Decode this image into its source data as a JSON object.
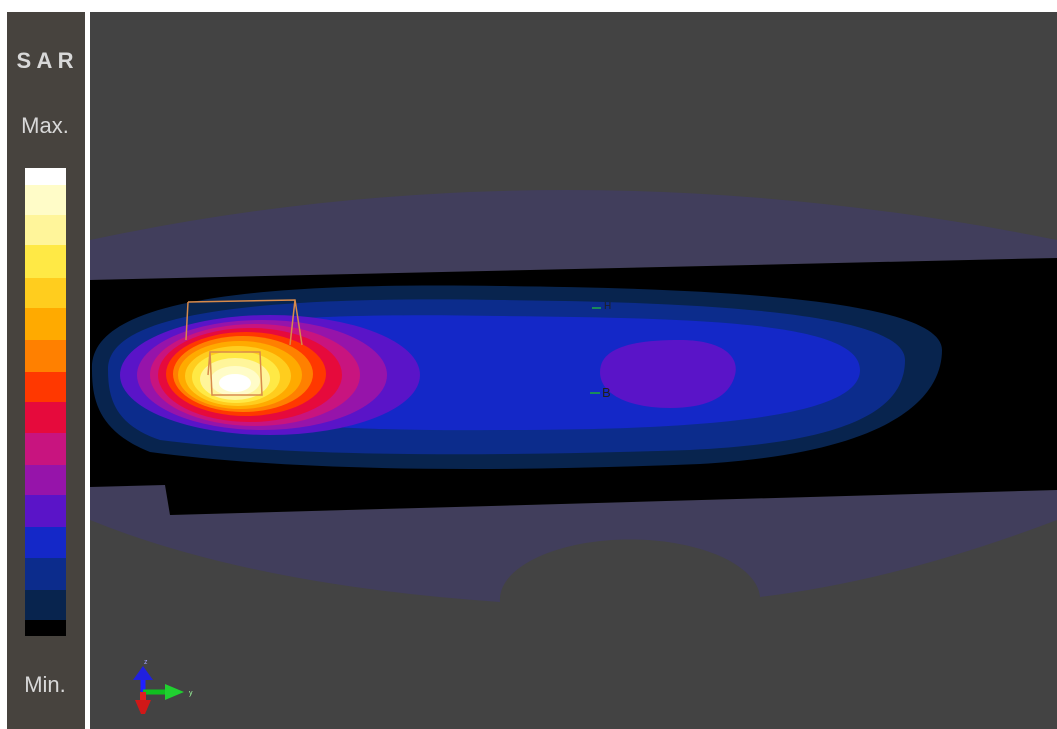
{
  "legend": {
    "title": "S A R",
    "max_label": "Max.",
    "min_label": "Min."
  },
  "markers": {
    "h": "H",
    "b": "B"
  },
  "axes": {
    "z": "z",
    "y": "y"
  }
}
